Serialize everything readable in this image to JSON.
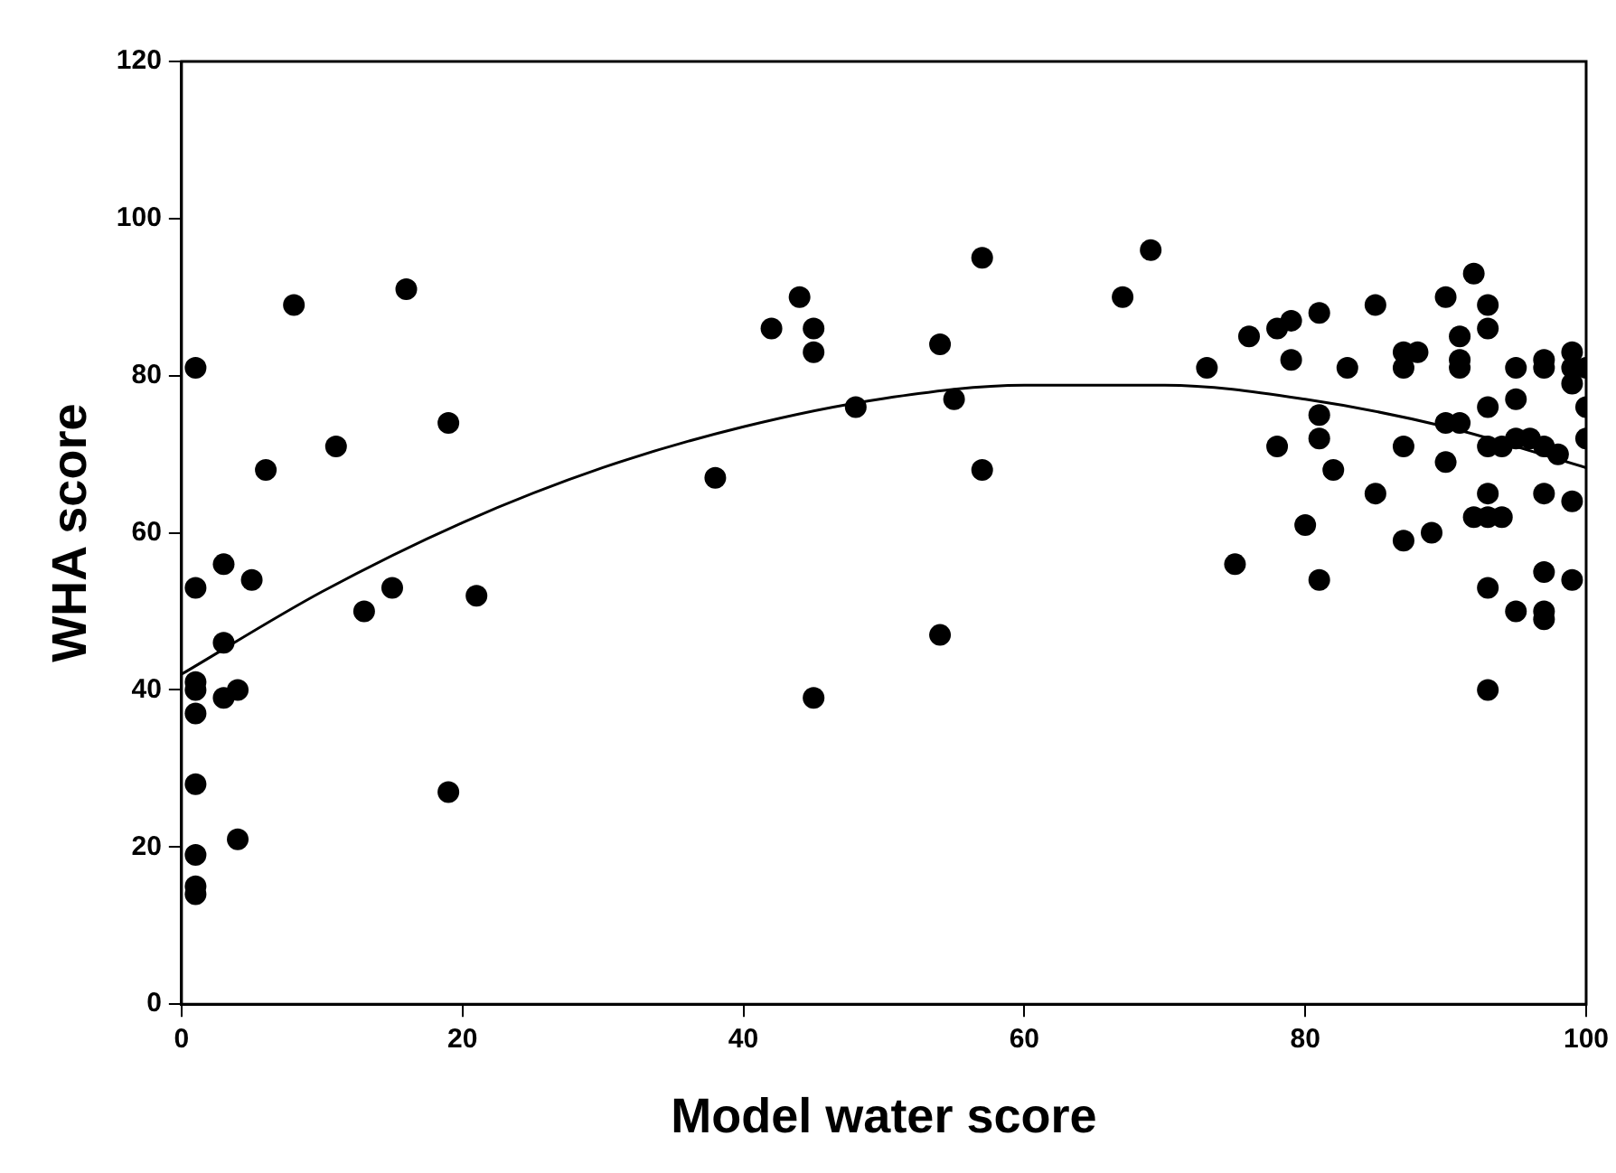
{
  "chart_data": {
    "type": "scatter",
    "xlabel": "Model water score",
    "ylabel": "WHA score",
    "xlim": [
      0,
      100
    ],
    "xticks": [
      0,
      20,
      40,
      60,
      80,
      100
    ],
    "ylim": [
      0,
      120
    ],
    "yticks": [
      0,
      20,
      40,
      60,
      80,
      100,
      120
    ],
    "grid": false,
    "legend": false,
    "marker": "circle",
    "series": [
      {
        "color": "#000000",
        "x": [
          1,
          1,
          1,
          1,
          1,
          1,
          1,
          1,
          1,
          3,
          3,
          3,
          4,
          4,
          5,
          6,
          8,
          11,
          13,
          15,
          16,
          19,
          19,
          21,
          38,
          42,
          44,
          45,
          45,
          45,
          48,
          54,
          54,
          55,
          57,
          57,
          67,
          69,
          73,
          75,
          76,
          78,
          78,
          79,
          79,
          80,
          81,
          81,
          81,
          81,
          82,
          83,
          85,
          85,
          87,
          87,
          87,
          87,
          88,
          89,
          90,
          90,
          90,
          91,
          91,
          91,
          91,
          92,
          92,
          93,
          93,
          93,
          93,
          93,
          93,
          93,
          93,
          94,
          94,
          95,
          95,
          95,
          95,
          96,
          97,
          97,
          97,
          97,
          97,
          97,
          97,
          98,
          99,
          99,
          99,
          99,
          99,
          100,
          100,
          100
        ],
        "values": [
          81,
          53,
          41,
          40,
          37,
          28,
          19,
          15,
          14,
          56,
          46,
          39,
          40,
          21,
          54,
          68,
          89,
          71,
          50,
          53,
          91,
          74,
          27,
          52,
          67,
          86,
          90,
          86,
          83,
          39,
          76,
          84,
          47,
          77,
          95,
          68,
          90,
          96,
          81,
          56,
          85,
          86,
          71,
          87,
          82,
          61,
          88,
          75,
          72,
          54,
          68,
          81,
          89,
          65,
          83,
          81,
          71,
          59,
          83,
          60,
          90,
          74,
          69,
          74,
          85,
          82,
          81,
          93,
          62,
          89,
          86,
          76,
          71,
          65,
          62,
          53,
          40,
          71,
          62,
          81,
          77,
          72,
          50,
          72,
          82,
          81,
          71,
          65,
          55,
          50,
          49,
          70,
          83,
          81,
          79,
          64,
          54,
          81,
          76,
          72
        ]
      },
      {
        "type": "line",
        "color": "#000000",
        "marker": "none",
        "line_style": "solid",
        "x": [
          0,
          10,
          20,
          30,
          40,
          50,
          60,
          70,
          80,
          90,
          100
        ],
        "values": [
          42,
          52.5,
          61.3,
          68.3,
          73.5,
          77.1,
          78.8,
          78.8,
          77.0,
          73.5,
          68.3
        ]
      }
    ]
  }
}
